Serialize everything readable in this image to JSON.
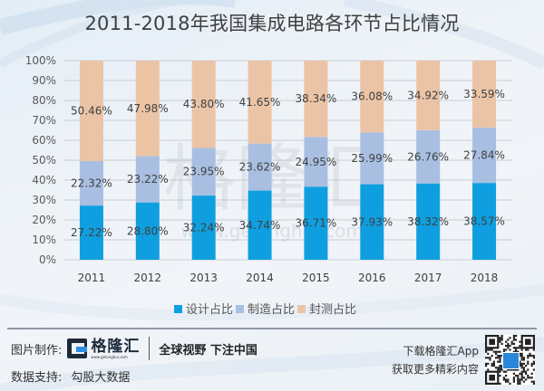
{
  "chart_data": {
    "type": "bar",
    "stacked": true,
    "title": "2011-2018年我国集成电路各环节占比情况",
    "categories": [
      "2011",
      "2012",
      "2013",
      "2014",
      "2015",
      "2016",
      "2017",
      "2018"
    ],
    "series": [
      {
        "name": "设计占比",
        "color": "#0f9fe0",
        "values": [
          27.22,
          28.8,
          32.24,
          34.74,
          36.71,
          37.93,
          38.32,
          38.57
        ],
        "labels": [
          "27.22%",
          "28.80%",
          "32.24%",
          "34.74%",
          "36.71%",
          "37.93%",
          "38.32%",
          "38.57%"
        ]
      },
      {
        "name": "制造占比",
        "color": "#a8bfe2",
        "values": [
          22.32,
          23.22,
          23.95,
          23.62,
          24.95,
          25.99,
          26.76,
          27.84
        ],
        "labels": [
          "22.32%",
          "23.22%",
          "23.95%",
          "23.62%",
          "24.95%",
          "25.99%",
          "26.76%",
          "27.84%"
        ]
      },
      {
        "name": "封测占比",
        "color": "#ebc4a6",
        "values": [
          50.46,
          47.98,
          43.8,
          41.65,
          38.34,
          36.08,
          34.92,
          33.59
        ],
        "labels": [
          "50.46%",
          "47.98%",
          "43.80%",
          "41.65%",
          "38.34%",
          "36.08%",
          "34.92%",
          "33.59%"
        ]
      }
    ],
    "ylim": [
      0,
      100
    ],
    "yticks": [
      "0%",
      "10%",
      "20%",
      "30%",
      "40%",
      "50%",
      "60%",
      "70%",
      "80%",
      "90%",
      "100%"
    ],
    "xlabel": "",
    "ylabel": "",
    "grid": true,
    "legend": "bottom"
  },
  "watermark": {
    "text": "格隆汇",
    "url": "www.gelonghui.com"
  },
  "footer": {
    "made_by_label": "图片制作:",
    "logo_name": "格隆汇",
    "logo_url": "www.gelonghui.com",
    "slogan": "全球视野 下注中国",
    "data_support_label": "数据支持:",
    "data_support_value": "勾股大数据",
    "download_line1": "下载格隆汇App",
    "download_line2": "获取更多精彩内容"
  },
  "colors": {
    "design": "#0f9fe0",
    "manufacture": "#a8bfe2",
    "packaging": "#ebc4a6"
  }
}
